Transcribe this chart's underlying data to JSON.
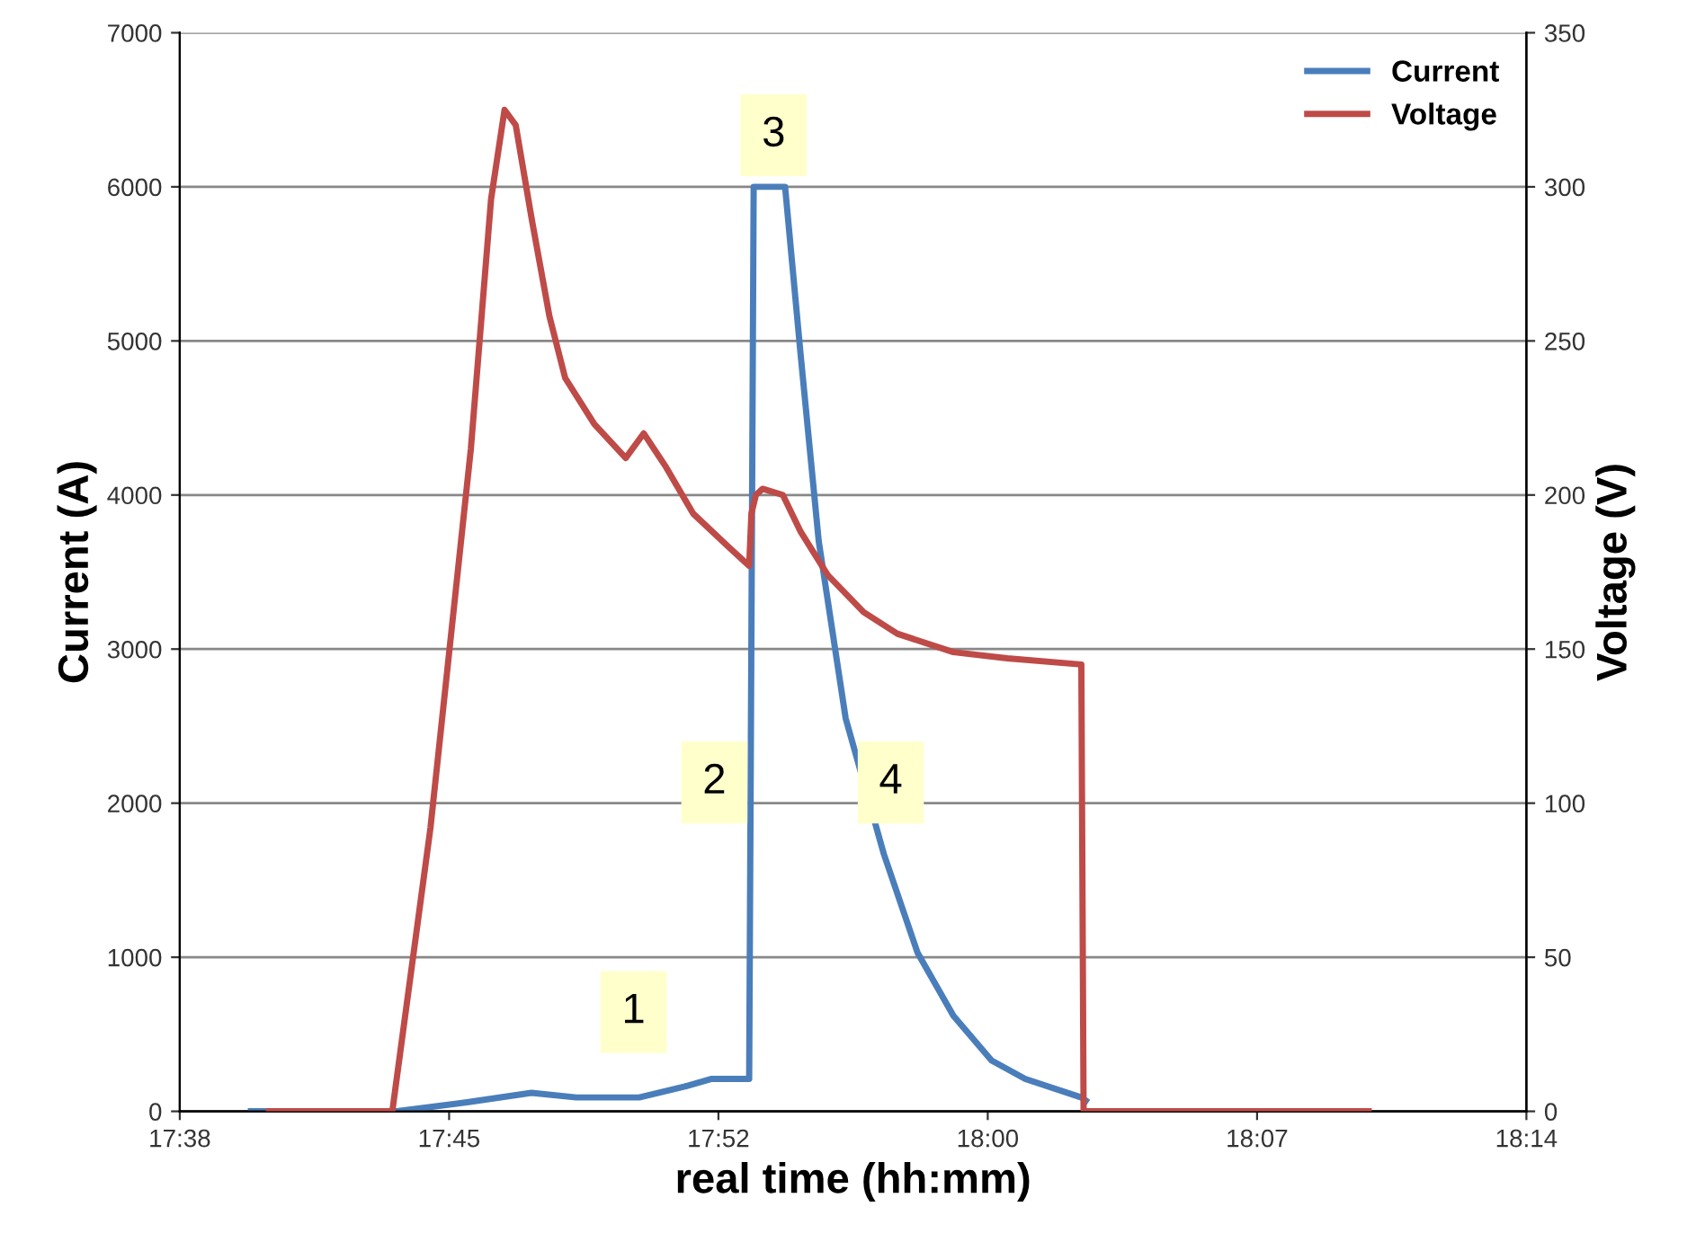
{
  "chart_data": {
    "type": "line",
    "xlabel": "real time (hh:mm)",
    "ylabel": "Current (A)",
    "y2label": "Voltage (V)",
    "xlim": [
      17.6333,
      18.2333
    ],
    "xticks": [
      {
        "value": 17.6333,
        "label": "17:38"
      },
      {
        "value": 17.7533,
        "label": "17:45"
      },
      {
        "value": 17.8733,
        "label": "17:52"
      },
      {
        "value": 17.9933,
        "label": "18:00"
      },
      {
        "value": 18.1133,
        "label": "18:07"
      },
      {
        "value": 18.2333,
        "label": "18:14"
      }
    ],
    "ylim": [
      0,
      7000
    ],
    "yticks": [
      0,
      1000,
      2000,
      3000,
      4000,
      5000,
      6000,
      7000
    ],
    "y2lim": [
      0,
      350
    ],
    "y2ticks": [
      0,
      50,
      100,
      150,
      200,
      250,
      300,
      350
    ],
    "grid": "y",
    "legend": "top right",
    "marker": "none",
    "line_style": "solid",
    "series": [
      {
        "name": "Current",
        "color": "#4a7ebb",
        "x": [
          17.665,
          17.73,
          17.762,
          17.79,
          17.81,
          17.838,
          17.858,
          17.87,
          17.887,
          17.889,
          17.903,
          17.91,
          17.918,
          17.93,
          17.947,
          17.962,
          17.978,
          17.995,
          18.01,
          18.035,
          18.037
        ],
        "values": [
          0,
          0,
          60,
          120,
          90,
          90,
          160,
          210,
          210,
          6000,
          6000,
          4900,
          3700,
          2550,
          1670,
          1030,
          620,
          330,
          210,
          90,
          70
        ]
      },
      {
        "name": "Voltage",
        "color": "#be4b48",
        "axis": "y2",
        "x": [
          17.673,
          17.728,
          17.745,
          17.763,
          17.772,
          17.778,
          17.783,
          17.79,
          17.798,
          17.805,
          17.818,
          17.832,
          17.84,
          17.85,
          17.862,
          17.878,
          17.887,
          17.888,
          17.89,
          17.893,
          17.902,
          17.91,
          17.922,
          17.938,
          17.953,
          17.978,
          18.002,
          18.035,
          18.036,
          18.163
        ],
        "values": [
          0,
          0,
          92,
          215,
          296,
          325,
          320,
          290,
          258,
          238,
          223,
          212,
          220,
          209,
          194,
          183,
          177,
          194,
          200,
          202,
          200,
          188,
          174,
          162,
          155,
          149,
          147,
          145,
          0,
          0
        ]
      }
    ],
    "annotations": [
      "1",
      "2",
      "3",
      "4"
    ]
  }
}
